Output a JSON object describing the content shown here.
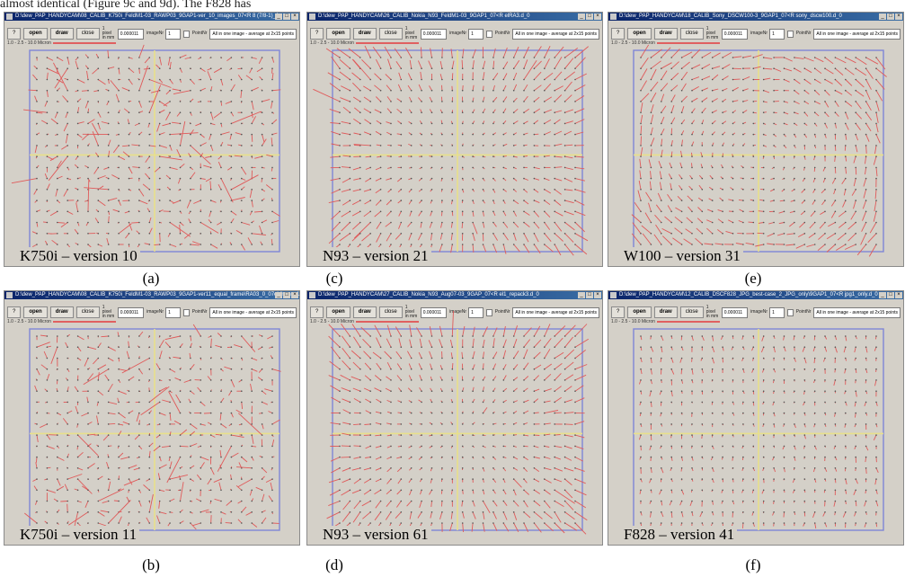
{
  "header_text": "almost identical (Figure 9c and 9d). The F828 has",
  "window": {
    "toolbar": {
      "help": "?",
      "open": "open",
      "draw": "draw",
      "close": "close",
      "pixel_label": "1 pixel in mm",
      "pixel_value": "0.000011",
      "imagenr_label": "imageNr",
      "imagenr_value": "1",
      "pointnr_label": "PointNr",
      "mode_value": "All in one image - average at 2x15 points"
    },
    "scale_text": "1.0 - 2.5 - 10.0 Micron"
  },
  "panels": [
    {
      "title": "D:\\dew_PAP_HANDYCAM\\08_CALIB_K750i_FeldM1-03_RAWP03_9GAP1-ver_10_images_07<R 8 (7/8-1)_1",
      "caption": "K750i – version 10",
      "letter": "(a)",
      "scheme": "noisy",
      "seed": 11
    },
    {
      "title": "D:\\dew_PAP_HANDYCAM\\08_CALIB_K750i_FeldM1-03_RAWP03_9GAP1-ver11_equal_frame\\RA03_0_07el-frames1.d_1",
      "caption": "K750i – version 11",
      "letter": "(b)",
      "scheme": "noisy2",
      "seed": 23
    },
    {
      "title": "D:\\dew_PAP_HANDYCAM\\26_CALIB_Nokia_N93_FeldM1-03_9GAP1_07<R elRA3.d_0",
      "caption": "N93 – version 21",
      "letter": "(c)",
      "scheme": "radial",
      "seed": 31
    },
    {
      "title": "D:\\dew_PAP_HANDYCAM\\27_CALIB_Nokia_N93_Aug07-03_9GAP_07<R el1_repack3.d_0",
      "caption": "N93 – version 61",
      "letter": "(d)",
      "scheme": "radial",
      "seed": 47
    },
    {
      "title": "D:\\dew_PAP_HANDYCAM\\18_CALIB_Sony_DSCW100-3_9GAP1_07<R sony_dscw100.d_0",
      "caption": "W100 – version 31",
      "letter": "(e)",
      "scheme": "swirl",
      "seed": 53
    },
    {
      "title": "D:\\dew_PAP_HANDYCAM\\12_CALIB_DSCF828_JPG_best-case_2_JPG_only\\9GAP1_07<R jpg1_only.d_0",
      "caption": "F828 – version 41",
      "letter": "(f)",
      "scheme": "small",
      "seed": 67
    }
  ],
  "colors": {
    "frame": "#7f86d6",
    "crosshair": "#e8e08a",
    "vector": "#e05a5a",
    "panel_bg": "#d4d0c8"
  }
}
